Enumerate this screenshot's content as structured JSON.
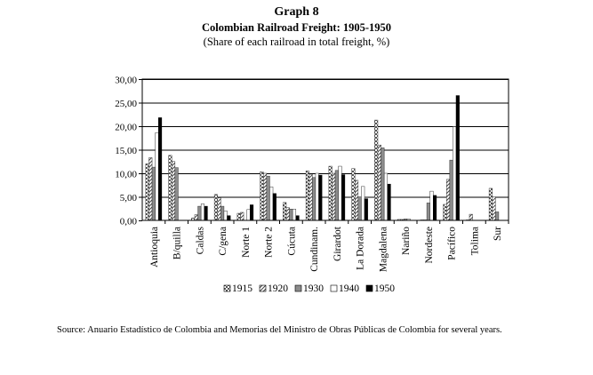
{
  "chart_data": {
    "type": "bar",
    "title": "Graph 8",
    "subtitle": "Colombian Railroad Freight: 1905-1950",
    "note": "(Share of each railroad in total freight, %)",
    "xlabel": "",
    "ylabel": "",
    "ylim": [
      0,
      30
    ],
    "yticks": [
      "0,00",
      "5,00",
      "10,00",
      "15,00",
      "20,00",
      "25,00",
      "30,00"
    ],
    "grid": true,
    "legend_position": "bottom",
    "categories": [
      "Antioquia",
      "B/quilla",
      "Caldas",
      "C/gena",
      "Norte 1",
      "Norte 2",
      "Cúcuta",
      "Cundinam.",
      "Girardot",
      "La Dorada",
      "Magdalena",
      "Nariño",
      "Nordeste",
      "Pacífico",
      "Tolima",
      "Sur"
    ],
    "series": [
      {
        "name": "1915",
        "pattern": "checker",
        "values": [
          12.0,
          13.8,
          0.5,
          5.5,
          1.5,
          10.3,
          3.8,
          10.5,
          11.5,
          11.0,
          21.3,
          0.2,
          0.1,
          3.4,
          0.1,
          6.8
        ]
      },
      {
        "name": "1920",
        "pattern": "diagonal",
        "values": [
          13.3,
          12.5,
          1.2,
          4.8,
          1.7,
          10.0,
          2.7,
          9.8,
          10.0,
          8.5,
          16.0,
          0.2,
          0.1,
          8.7,
          1.3,
          5.0
        ]
      },
      {
        "name": "1930",
        "pattern": "gray",
        "values": [
          11.3,
          11.2,
          3.0,
          3.0,
          0.0,
          9.4,
          2.4,
          9.1,
          10.6,
          5.0,
          15.4,
          0.3,
          3.7,
          12.8,
          0.0,
          1.8
        ]
      },
      {
        "name": "1940",
        "pattern": "white",
        "values": [
          18.6,
          0.0,
          3.5,
          2.0,
          2.3,
          7.1,
          2.4,
          10.0,
          11.5,
          7.2,
          10.0,
          0.3,
          6.2,
          19.9,
          0.0,
          0.0
        ]
      },
      {
        "name": "1950",
        "pattern": "black",
        "values": [
          21.8,
          0.0,
          3.0,
          1.0,
          3.3,
          5.7,
          1.0,
          9.6,
          9.7,
          4.6,
          7.7,
          0.0,
          5.3,
          26.5,
          0.0,
          0.0
        ]
      }
    ]
  },
  "source": "Source: Anuario Estadístico de Colombia and Memorias del Ministro de Obras Públicas de Colombia for several years."
}
